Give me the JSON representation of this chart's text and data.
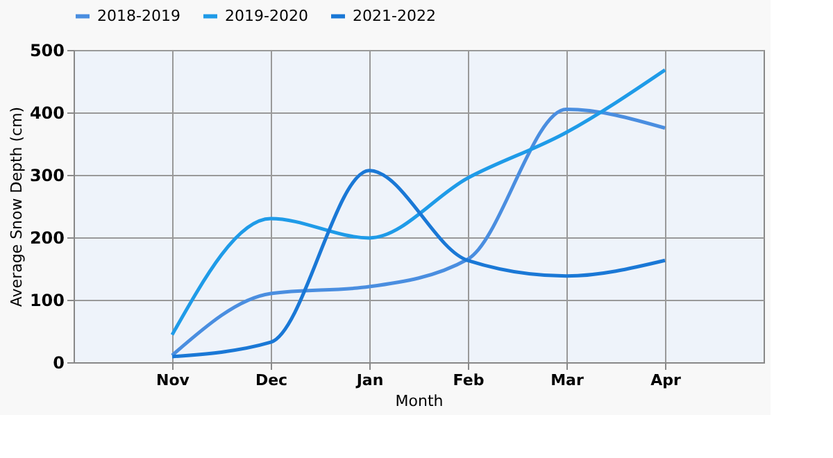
{
  "chart_data": {
    "type": "line",
    "xlabel": "Month",
    "ylabel": "Average Snow Depth (cm)",
    "categories": [
      "Nov",
      "Dec",
      "Jan",
      "Feb",
      "Mar",
      "Apr"
    ],
    "series": [
      {
        "name": "2018-2019",
        "color": "#4a8ee0",
        "values": [
          11,
          110,
          121,
          165,
          405,
          375
        ]
      },
      {
        "name": "2019-2020",
        "color": "#1f9be8",
        "values": [
          44,
          230,
          199,
          295,
          368,
          468
        ]
      },
      {
        "name": "2021-2022",
        "color": "#1a78d6",
        "values": [
          9,
          32,
          307,
          163,
          138,
          163
        ]
      }
    ],
    "ylim": [
      0,
      500
    ],
    "yticks": [
      0,
      100,
      200,
      300,
      400,
      500
    ],
    "grid": true,
    "legend": "top",
    "marker": "none",
    "line_style": "solid"
  }
}
